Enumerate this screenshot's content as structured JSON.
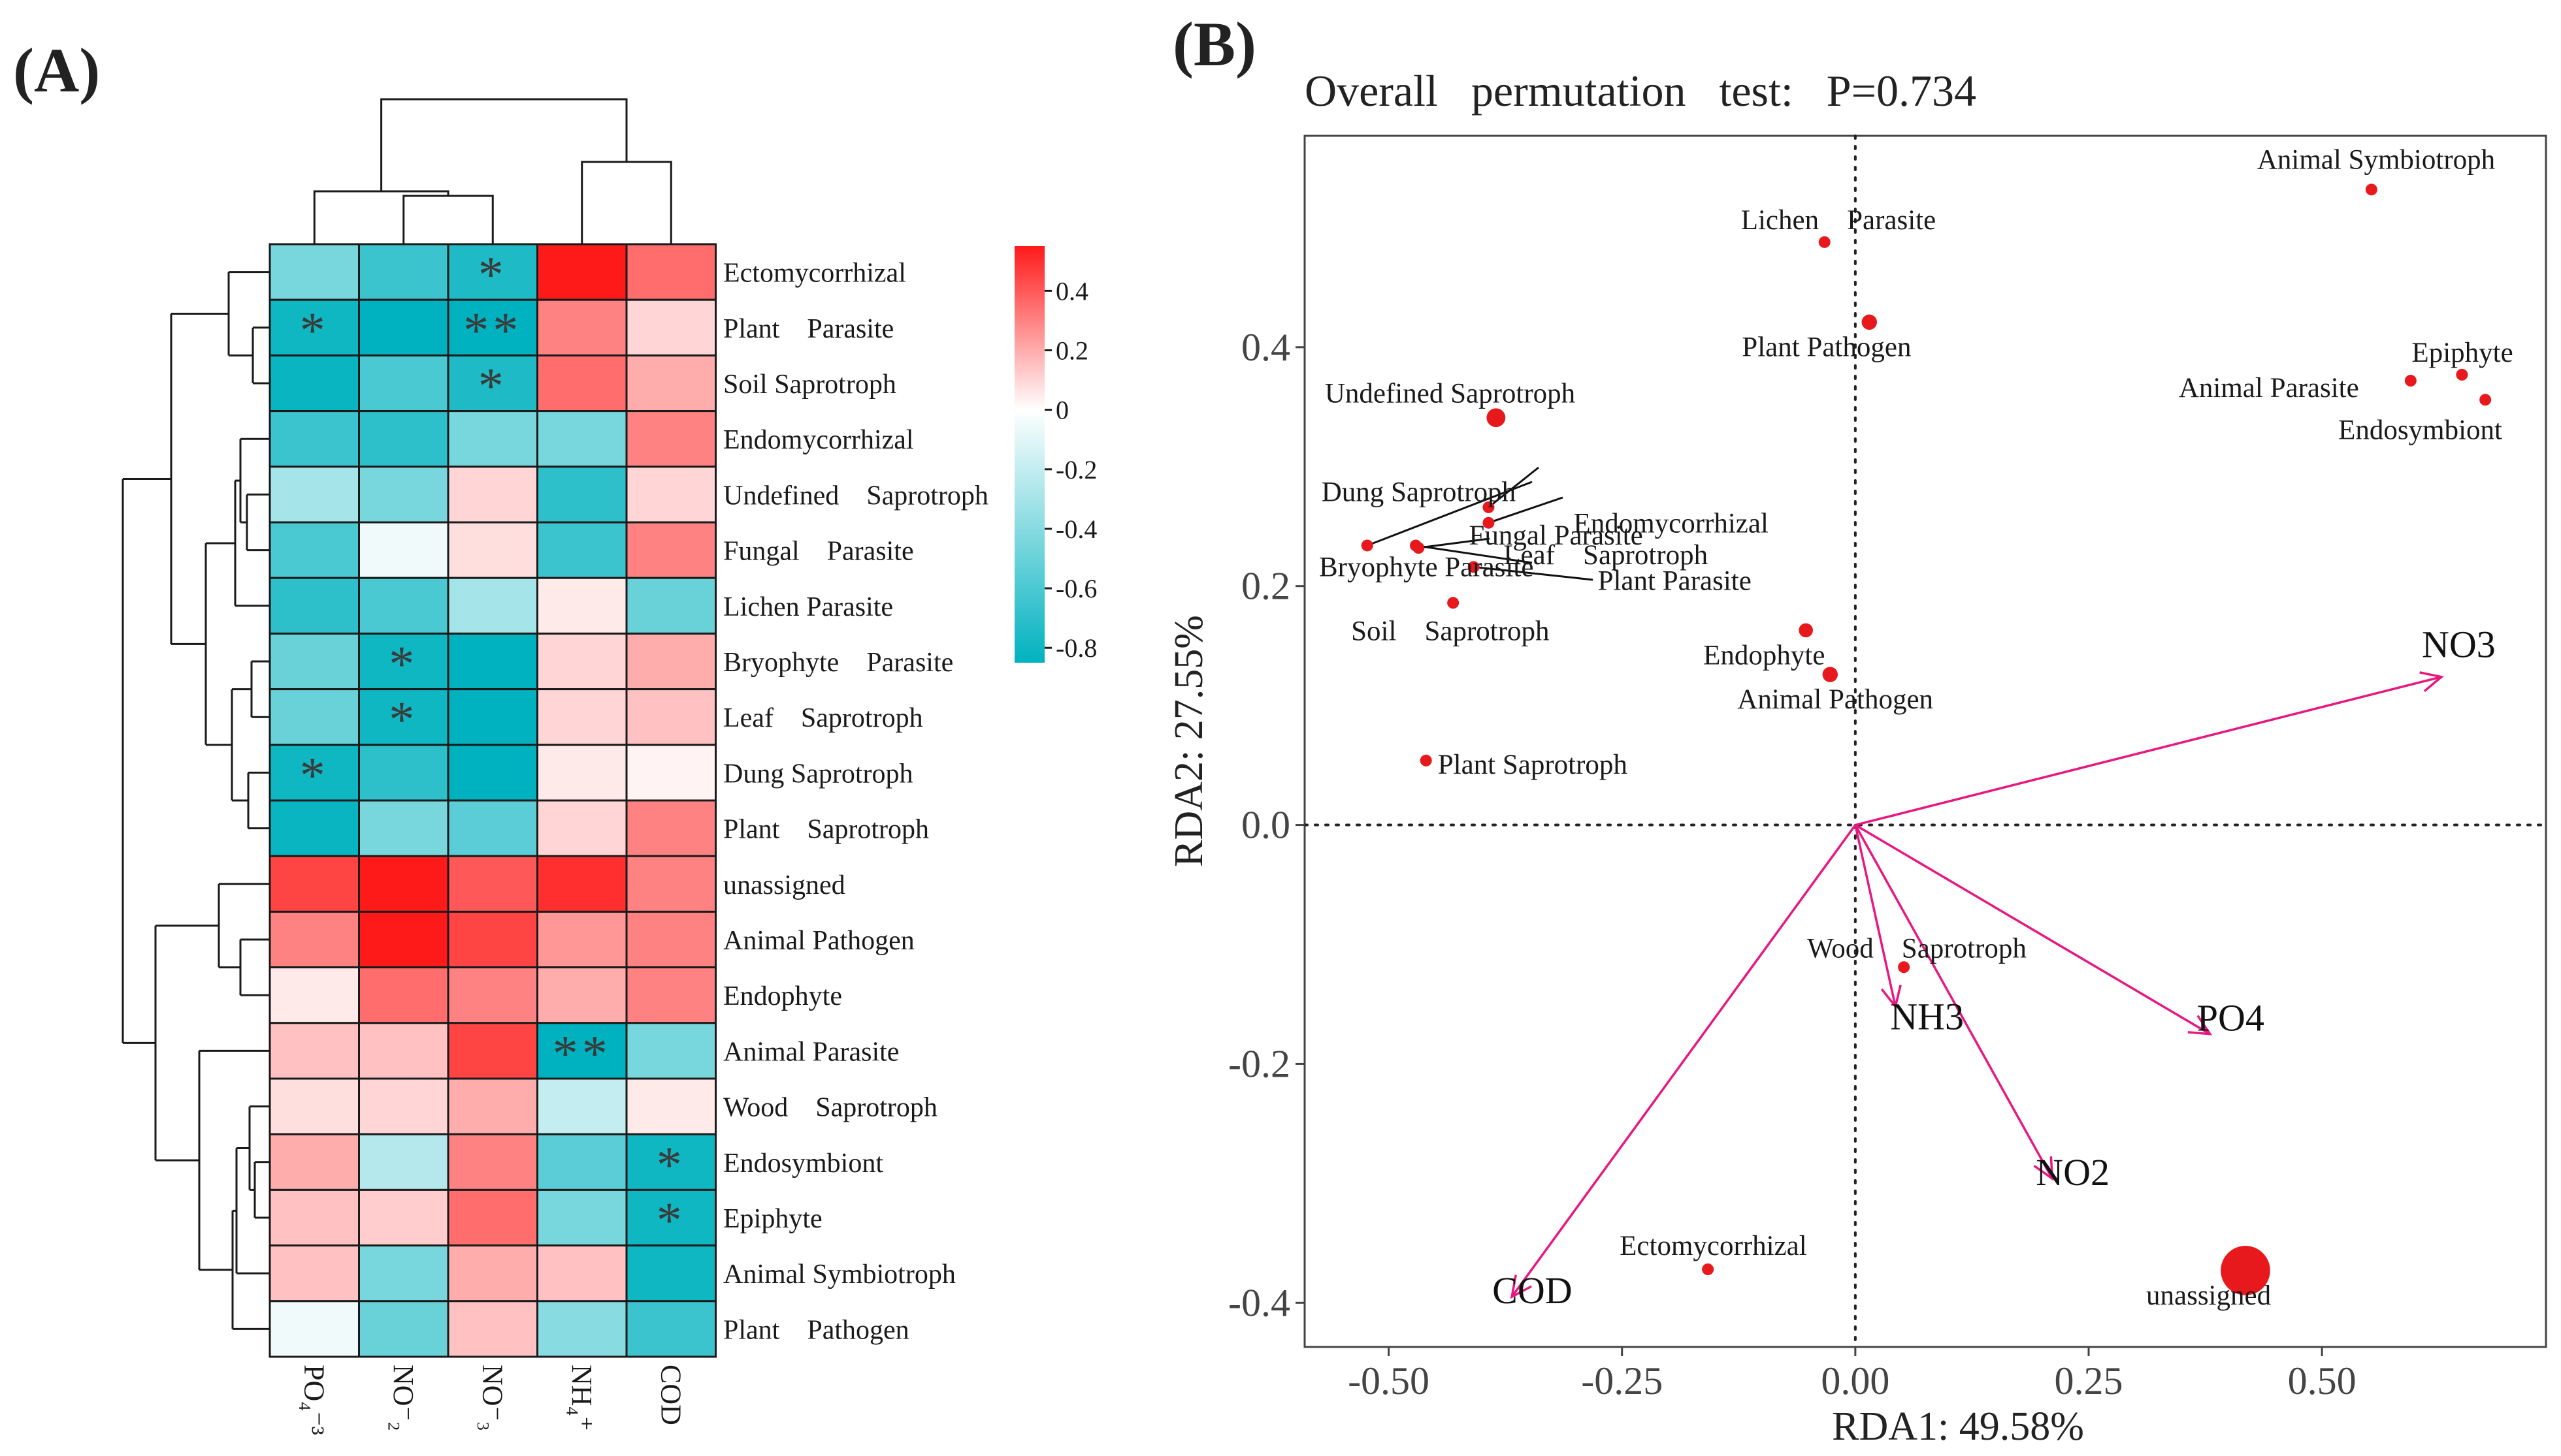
{
  "panel_a": {
    "label": "(A)",
    "chart_data": {
      "type": "heatmap",
      "columns": [
        "PO₄⁻³",
        "NO⁻₂",
        "NO⁻₃",
        "NH₄⁺",
        "COD"
      ],
      "rows": [
        "Ectomycorrhizal",
        "Plant    Parasite",
        "Soil Saprotroph",
        "Endomycorrhizal",
        "Undefined    Saprotroph",
        "Fungal    Parasite",
        "Lichen Parasite",
        "Bryophyte    Parasite",
        "Leaf    Saprotroph",
        "Dung Saprotroph",
        "Plant    Saprotroph",
        "unassigned",
        "Animal Pathogen",
        "Endophyte",
        "Animal Parasite",
        "Wood    Saprotroph",
        "Endosymbiont",
        "Epiphyte",
        "Animal Symbiotroph",
        "Plant    Pathogen"
      ],
      "values": [
        [
          -0.45,
          -0.65,
          -0.75,
          0.55,
          0.35
        ],
        [
          -0.8,
          -0.85,
          -0.85,
          0.3,
          0.1
        ],
        [
          -0.82,
          -0.6,
          -0.75,
          0.35,
          0.2
        ],
        [
          -0.65,
          -0.7,
          -0.45,
          -0.45,
          0.3
        ],
        [
          -0.3,
          -0.45,
          0.1,
          -0.7,
          0.1
        ],
        [
          -0.6,
          -0.05,
          0.08,
          -0.65,
          0.3
        ],
        [
          -0.7,
          -0.6,
          -0.3,
          0.05,
          -0.5
        ],
        [
          -0.5,
          -0.8,
          -0.85,
          0.1,
          0.2
        ],
        [
          -0.5,
          -0.8,
          -0.85,
          0.1,
          0.15
        ],
        [
          -0.8,
          -0.7,
          -0.85,
          0.05,
          0.03
        ],
        [
          -0.82,
          -0.45,
          -0.55,
          0.1,
          0.3
        ],
        [
          0.45,
          0.55,
          0.4,
          0.5,
          0.3
        ],
        [
          0.3,
          0.55,
          0.45,
          0.25,
          0.3
        ],
        [
          0.05,
          0.35,
          0.3,
          0.2,
          0.3
        ],
        [
          0.15,
          0.15,
          0.45,
          -0.85,
          -0.45
        ],
        [
          0.08,
          0.1,
          0.2,
          -0.2,
          0.05
        ],
        [
          0.2,
          -0.25,
          0.3,
          -0.55,
          -0.8
        ],
        [
          0.15,
          0.12,
          0.35,
          -0.45,
          -0.8
        ],
        [
          0.15,
          -0.45,
          0.2,
          0.15,
          -0.8
        ],
        [
          -0.05,
          -0.5,
          0.15,
          -0.4,
          -0.65
        ]
      ],
      "significance": [
        [
          "",
          "",
          "*",
          "",
          ""
        ],
        [
          "*",
          "",
          "**",
          "",
          ""
        ],
        [
          "",
          "",
          "*",
          "",
          ""
        ],
        [
          "",
          "",
          "",
          "",
          ""
        ],
        [
          "",
          "",
          "",
          "",
          ""
        ],
        [
          "",
          "",
          "",
          "",
          ""
        ],
        [
          "",
          "",
          "",
          "",
          ""
        ],
        [
          "",
          "*",
          "",
          "",
          ""
        ],
        [
          "",
          "*",
          "",
          "",
          ""
        ],
        [
          "*",
          "",
          "",
          "",
          ""
        ],
        [
          "",
          "",
          "",
          "",
          ""
        ],
        [
          "",
          "",
          "",
          "",
          ""
        ],
        [
          "",
          "",
          "",
          "",
          ""
        ],
        [
          "",
          "",
          "",
          "",
          ""
        ],
        [
          "",
          "",
          "",
          "**",
          ""
        ],
        [
          "",
          "",
          "",
          "",
          ""
        ],
        [
          "",
          "",
          "",
          "",
          "*"
        ],
        [
          "",
          "",
          "",
          "",
          "*"
        ],
        [
          "",
          "",
          "",
          "",
          ""
        ],
        [
          "",
          "",
          "",
          "",
          ""
        ]
      ],
      "color_scale": {
        "min": -0.85,
        "max": 0.55,
        "low_color": "#00B2BF",
        "mid_color": "#FFFFFF",
        "high_color": "#FF1A1A",
        "ticks": [
          0.4,
          0.2,
          0,
          -0.2,
          -0.4,
          -0.6,
          -0.8
        ],
        "tick_labels": [
          "0.4",
          "0.2",
          "0",
          "-0.2",
          "-0.4",
          "-0.6",
          "-0.8"
        ]
      },
      "column_dendrogram": "((PO₄⁻³,(NO⁻₂,NO⁻₃)),(NH₄⁺,COD))",
      "row_dendrogram": "hierarchical clustering of 20 guilds"
    }
  },
  "panel_b": {
    "label": "(B)",
    "title": "Overall   permutation   test:   P=0.734",
    "chart_data": {
      "type": "scatter",
      "subtype": "RDA biplot",
      "xlabel": "RDA1: 49.58%",
      "ylabel": "RDA2: 27.55%",
      "xlim": [
        -0.59,
        0.74
      ],
      "ylim": [
        -0.437,
        0.577
      ],
      "xticks": [
        -0.5,
        -0.25,
        0.0,
        0.25,
        0.5
      ],
      "xtick_labels": [
        "-0.50",
        "-0.25",
        "0.00",
        "0.25",
        "0.50"
      ],
      "yticks": [
        0.4,
        0.2,
        0.0,
        -0.2,
        -0.4
      ],
      "ytick_labels": [
        "0.4",
        "0.2",
        "0.0",
        "-0.2",
        "-0.4"
      ],
      "point_color": "#E8191C",
      "arrow_color": "#E8177F",
      "points": [
        {
          "name": "Animal Symbiotroph",
          "x": 0.553,
          "y": 0.532,
          "size": 1
        },
        {
          "name": "Lichen    Parasite",
          "x": -0.033,
          "y": 0.488,
          "size": 1
        },
        {
          "name": "Plant Pathogen",
          "x": 0.015,
          "y": 0.421,
          "size": 1.3
        },
        {
          "name": "Epiphyte",
          "x": 0.65,
          "y": 0.377,
          "size": 1
        },
        {
          "name": "Animal Parasite",
          "x": 0.595,
          "y": 0.372,
          "size": 1
        },
        {
          "name": "Endosymbiont",
          "x": 0.675,
          "y": 0.356,
          "size": 1
        },
        {
          "name": "Undefined Saprotroph",
          "x": -0.385,
          "y": 0.341,
          "size": 1.6
        },
        {
          "name": "Fungal Parasite",
          "x": -0.393,
          "y": 0.266,
          "size": 1
        },
        {
          "name": "Dung Saprotroph",
          "x": -0.523,
          "y": 0.234,
          "size": 1
        },
        {
          "name": "Endomycorrhizal",
          "x": -0.393,
          "y": 0.253,
          "size": 1
        },
        {
          "name": "Leaf    Saprotroph",
          "x": -0.468,
          "y": 0.232,
          "size": 1
        },
        {
          "name": "Plant Parasite",
          "x": -0.409,
          "y": 0.216,
          "size": 1
        },
        {
          "name": "Bryophyte Parasite",
          "x": -0.471,
          "y": 0.234,
          "size": 1
        },
        {
          "name": "Soil    Saprotroph",
          "x": -0.431,
          "y": 0.186,
          "size": 1
        },
        {
          "name": "Endophyte",
          "x": -0.053,
          "y": 0.163,
          "size": 1.2
        },
        {
          "name": "Animal Pathogen",
          "x": -0.027,
          "y": 0.126,
          "size": 1.3
        },
        {
          "name": "Plant Saprotroph",
          "x": -0.46,
          "y": 0.054,
          "size": 1
        },
        {
          "name": "Wood    Saprotroph",
          "x": 0.052,
          "y": -0.119,
          "size": 1
        },
        {
          "name": "Ectomycorrhizal",
          "x": -0.158,
          "y": -0.372,
          "size": 1
        },
        {
          "name": "unassigned",
          "x": 0.418,
          "y": -0.373,
          "size": 4.2
        }
      ],
      "arrows": [
        {
          "name": "NO3",
          "x": 0.628,
          "y": 0.124
        },
        {
          "name": "PO4",
          "x": 0.38,
          "y": -0.175
        },
        {
          "name": "NH3",
          "x": 0.043,
          "y": -0.152
        },
        {
          "name": "NO2",
          "x": 0.211,
          "y": -0.296
        },
        {
          "name": "COD",
          "x": -0.368,
          "y": -0.395
        }
      ]
    }
  }
}
